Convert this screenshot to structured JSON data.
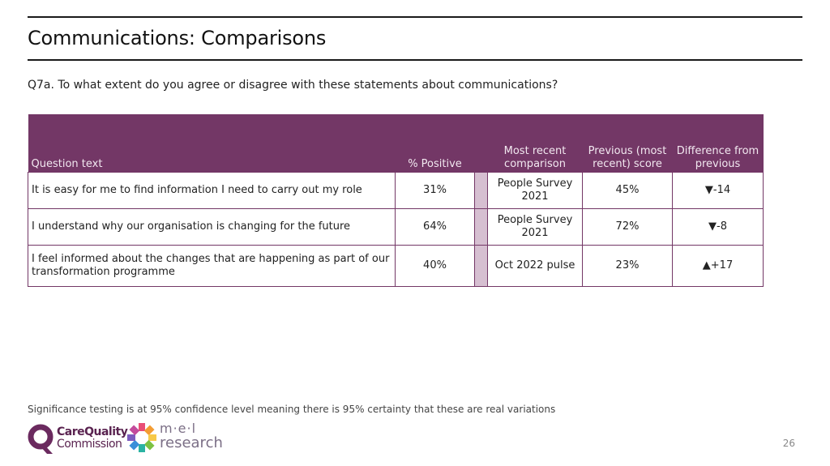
{
  "header": {
    "title": "Communications: Comparisons",
    "question": "Q7a. To what extent do you agree or disagree with these statements about communications?"
  },
  "table": {
    "headers": {
      "question_text": "Question text",
      "positive": "% Positive",
      "comparison": "Most recent comparison",
      "previous": "Previous (most recent) score",
      "difference": "Difference from previous"
    },
    "rows": [
      {
        "question": "It is easy for me to find information I need to carry out my role",
        "positive": "31%",
        "comparison": "People Survey 2021",
        "previous": "45%",
        "difference": "▼-14"
      },
      {
        "question": "I understand why our organisation is changing for the future",
        "positive": "64%",
        "comparison": "People Survey 2021",
        "previous": "72%",
        "difference": "▼-8"
      },
      {
        "question": "I feel informed about the changes that are happening as part of our transformation programme",
        "positive": "40%",
        "comparison": "Oct 2022 pulse",
        "previous": "23%",
        "difference": "▲+17"
      }
    ]
  },
  "footer": {
    "significance_note": "Significance testing is at 95% confidence level meaning there is 95% certainty that these are real variations",
    "cqc_logo": {
      "line1": "CareQuality",
      "line2": "Commission",
      "icon": "cqc-q-icon"
    },
    "mel_logo": {
      "line1": "m·e·l",
      "line2": "research",
      "icon": "mel-star-icon"
    },
    "page_number": "26"
  },
  "colors": {
    "header_purple": "#733766",
    "gap_lilac": "#d6bfd1",
    "cqc_purple": "#5a2350"
  }
}
